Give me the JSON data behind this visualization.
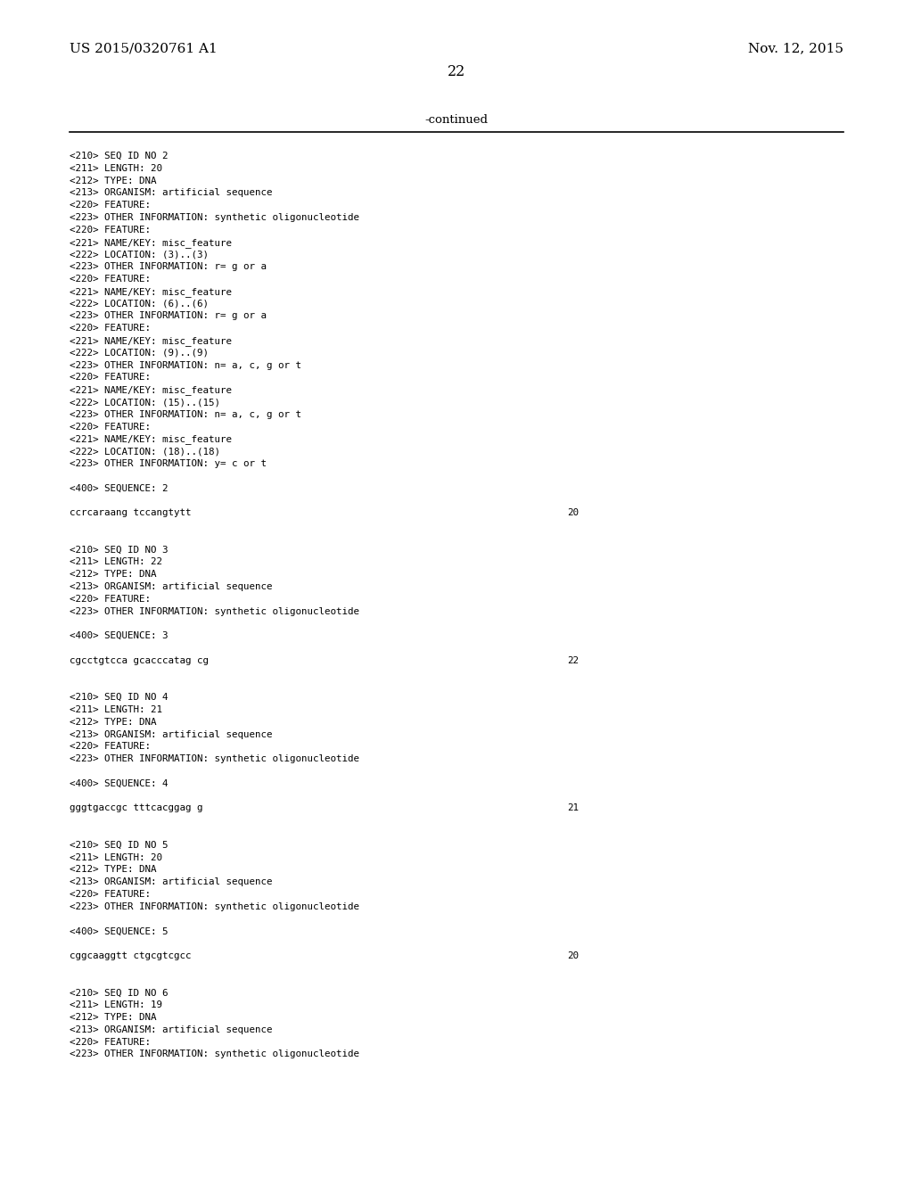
{
  "bg_color": "#ffffff",
  "header_left": "US 2015/0320761 A1",
  "header_right": "Nov. 12, 2015",
  "page_number": "22",
  "continued_text": "-continued",
  "content_lines": [
    {
      "text": "<210> SEQ ID NO 2",
      "blank_before": 0
    },
    {
      "text": "<211> LENGTH: 20",
      "blank_before": 0
    },
    {
      "text": "<212> TYPE: DNA",
      "blank_before": 0
    },
    {
      "text": "<213> ORGANISM: artificial sequence",
      "blank_before": 0
    },
    {
      "text": "<220> FEATURE:",
      "blank_before": 0
    },
    {
      "text": "<223> OTHER INFORMATION: synthetic oligonucleotide",
      "blank_before": 0
    },
    {
      "text": "<220> FEATURE:",
      "blank_before": 0
    },
    {
      "text": "<221> NAME/KEY: misc_feature",
      "blank_before": 0
    },
    {
      "text": "<222> LOCATION: (3)..(3)",
      "blank_before": 0
    },
    {
      "text": "<223> OTHER INFORMATION: r= g or a",
      "blank_before": 0
    },
    {
      "text": "<220> FEATURE:",
      "blank_before": 0
    },
    {
      "text": "<221> NAME/KEY: misc_feature",
      "blank_before": 0
    },
    {
      "text": "<222> LOCATION: (6)..(6)",
      "blank_before": 0
    },
    {
      "text": "<223> OTHER INFORMATION: r= g or a",
      "blank_before": 0
    },
    {
      "text": "<220> FEATURE:",
      "blank_before": 0
    },
    {
      "text": "<221> NAME/KEY: misc_feature",
      "blank_before": 0
    },
    {
      "text": "<222> LOCATION: (9)..(9)",
      "blank_before": 0
    },
    {
      "text": "<223> OTHER INFORMATION: n= a, c, g or t",
      "blank_before": 0
    },
    {
      "text": "<220> FEATURE:",
      "blank_before": 0
    },
    {
      "text": "<221> NAME/KEY: misc_feature",
      "blank_before": 0
    },
    {
      "text": "<222> LOCATION: (15)..(15)",
      "blank_before": 0
    },
    {
      "text": "<223> OTHER INFORMATION: n= a, c, g or t",
      "blank_before": 0
    },
    {
      "text": "<220> FEATURE:",
      "blank_before": 0
    },
    {
      "text": "<221> NAME/KEY: misc_feature",
      "blank_before": 0
    },
    {
      "text": "<222> LOCATION: (18)..(18)",
      "blank_before": 0
    },
    {
      "text": "<223> OTHER INFORMATION: y= c or t",
      "blank_before": 0
    },
    {
      "text": "",
      "blank_before": 0
    },
    {
      "text": "<400> SEQUENCE: 2",
      "blank_before": 0
    },
    {
      "text": "",
      "blank_before": 0
    },
    {
      "text": "ccrcaraang tccangtytt",
      "blank_before": 0,
      "seq_num": "20"
    },
    {
      "text": "",
      "blank_before": 0
    },
    {
      "text": "",
      "blank_before": 0
    },
    {
      "text": "<210> SEQ ID NO 3",
      "blank_before": 0
    },
    {
      "text": "<211> LENGTH: 22",
      "blank_before": 0
    },
    {
      "text": "<212> TYPE: DNA",
      "blank_before": 0
    },
    {
      "text": "<213> ORGANISM: artificial sequence",
      "blank_before": 0
    },
    {
      "text": "<220> FEATURE:",
      "blank_before": 0
    },
    {
      "text": "<223> OTHER INFORMATION: synthetic oligonucleotide",
      "blank_before": 0
    },
    {
      "text": "",
      "blank_before": 0
    },
    {
      "text": "<400> SEQUENCE: 3",
      "blank_before": 0
    },
    {
      "text": "",
      "blank_before": 0
    },
    {
      "text": "cgcctgtcca gcacccatag cg",
      "blank_before": 0,
      "seq_num": "22"
    },
    {
      "text": "",
      "blank_before": 0
    },
    {
      "text": "",
      "blank_before": 0
    },
    {
      "text": "<210> SEQ ID NO 4",
      "blank_before": 0
    },
    {
      "text": "<211> LENGTH: 21",
      "blank_before": 0
    },
    {
      "text": "<212> TYPE: DNA",
      "blank_before": 0
    },
    {
      "text": "<213> ORGANISM: artificial sequence",
      "blank_before": 0
    },
    {
      "text": "<220> FEATURE:",
      "blank_before": 0
    },
    {
      "text": "<223> OTHER INFORMATION: synthetic oligonucleotide",
      "blank_before": 0
    },
    {
      "text": "",
      "blank_before": 0
    },
    {
      "text": "<400> SEQUENCE: 4",
      "blank_before": 0
    },
    {
      "text": "",
      "blank_before": 0
    },
    {
      "text": "gggtgaccgc tttcacggag g",
      "blank_before": 0,
      "seq_num": "21"
    },
    {
      "text": "",
      "blank_before": 0
    },
    {
      "text": "",
      "blank_before": 0
    },
    {
      "text": "<210> SEQ ID NO 5",
      "blank_before": 0
    },
    {
      "text": "<211> LENGTH: 20",
      "blank_before": 0
    },
    {
      "text": "<212> TYPE: DNA",
      "blank_before": 0
    },
    {
      "text": "<213> ORGANISM: artificial sequence",
      "blank_before": 0
    },
    {
      "text": "<220> FEATURE:",
      "blank_before": 0
    },
    {
      "text": "<223> OTHER INFORMATION: synthetic oligonucleotide",
      "blank_before": 0
    },
    {
      "text": "",
      "blank_before": 0
    },
    {
      "text": "<400> SEQUENCE: 5",
      "blank_before": 0
    },
    {
      "text": "",
      "blank_before": 0
    },
    {
      "text": "cggcaaggtt ctgcgtcgcc",
      "blank_before": 0,
      "seq_num": "20"
    },
    {
      "text": "",
      "blank_before": 0
    },
    {
      "text": "",
      "blank_before": 0
    },
    {
      "text": "<210> SEQ ID NO 6",
      "blank_before": 0
    },
    {
      "text": "<211> LENGTH: 19",
      "blank_before": 0
    },
    {
      "text": "<212> TYPE: DNA",
      "blank_before": 0
    },
    {
      "text": "<213> ORGANISM: artificial sequence",
      "blank_before": 0
    },
    {
      "text": "<220> FEATURE:",
      "blank_before": 0
    },
    {
      "text": "<223> OTHER INFORMATION: synthetic oligonucleotide",
      "blank_before": 0
    }
  ]
}
